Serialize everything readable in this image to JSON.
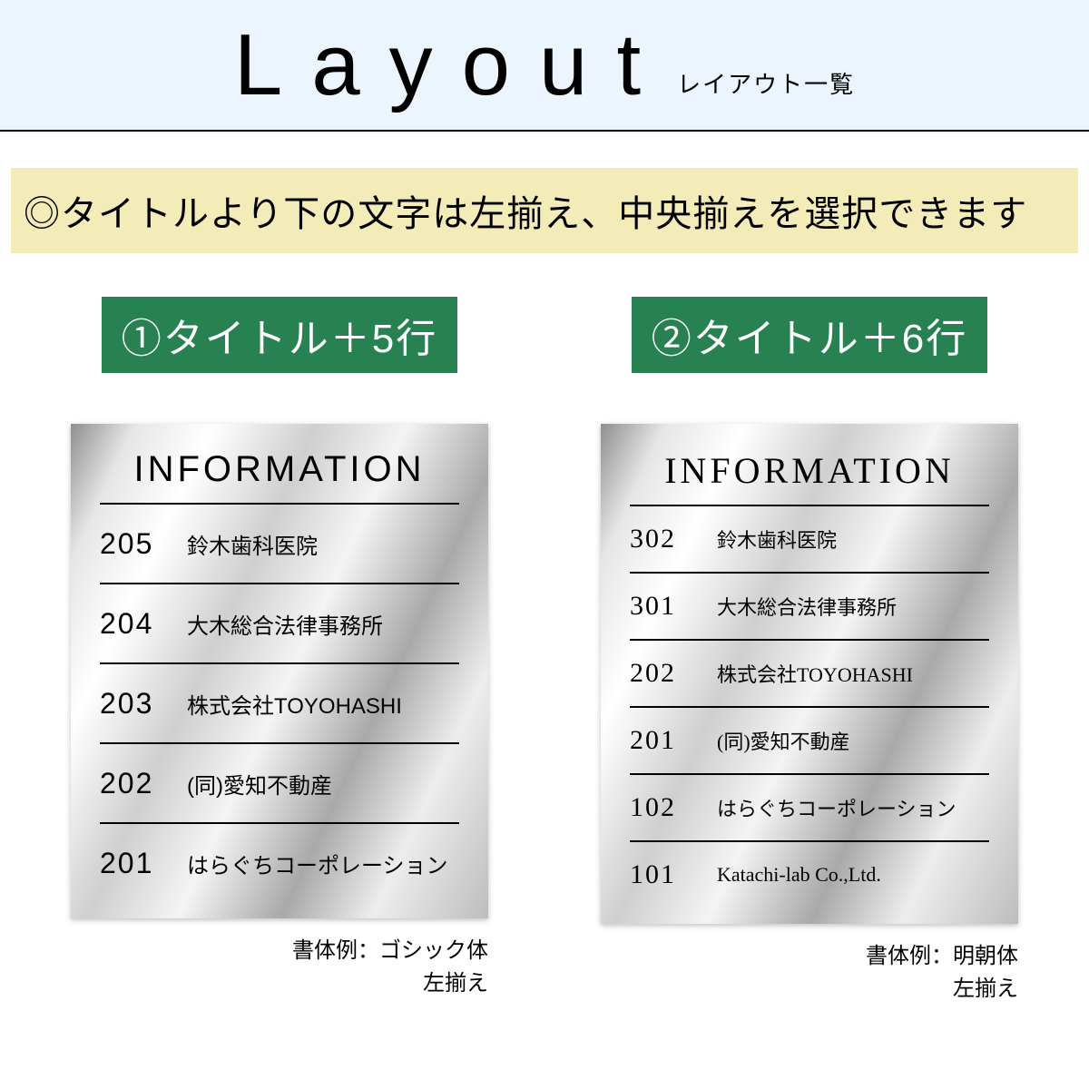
{
  "header": {
    "title": "Layout",
    "subtitle": "レイアウト一覧"
  },
  "notice": "◎タイトルより下の文字は左揃え、中央揃えを選択できます",
  "colors": {
    "header_bg": "#ecf5fd",
    "notice_bg": "#f4ecb8",
    "label_bg": "#278151",
    "label_text": "#ffffff",
    "divider": "#000000"
  },
  "columns": [
    {
      "label": "①タイトル＋5行",
      "plate_title": "INFORMATION",
      "font_style": "sans",
      "rows": [
        {
          "num": "205",
          "name": "鈴木歯科医院"
        },
        {
          "num": "204",
          "name": "大木総合法律事務所"
        },
        {
          "num": "203",
          "name": "株式会社TOYOHASHI"
        },
        {
          "num": "202",
          "name": "(同)愛知不動産"
        },
        {
          "num": "201",
          "name": "はらぐちコーポレーション"
        }
      ],
      "caption_line1": "書体例：ゴシック体",
      "caption_line2": "左揃え"
    },
    {
      "label": "②タイトル＋6行",
      "plate_title": "INFORMATION",
      "font_style": "serif",
      "rows": [
        {
          "num": "302",
          "name": "鈴木歯科医院"
        },
        {
          "num": "301",
          "name": "大木総合法律事務所"
        },
        {
          "num": "202",
          "name": "株式会社TOYOHASHI"
        },
        {
          "num": "201",
          "name": "(同)愛知不動産"
        },
        {
          "num": "102",
          "name": "はらぐちコーポレーション"
        },
        {
          "num": "101",
          "name": "Katachi-lab Co.,Ltd."
        }
      ],
      "caption_line1": "書体例：明朝体",
      "caption_line2": "左揃え"
    }
  ]
}
